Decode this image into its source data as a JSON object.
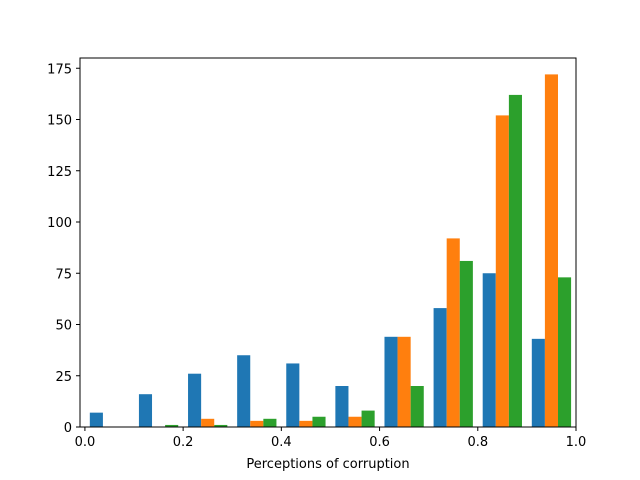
{
  "chart_data": {
    "type": "bar",
    "histogram": true,
    "title": "",
    "xlabel": "Perceptions of corruption",
    "ylabel": "",
    "xlim": [
      -0.01,
      1.0
    ],
    "ylim": [
      0,
      180
    ],
    "x_ticks": [
      0.0,
      0.2,
      0.4,
      0.6,
      0.8,
      1.0
    ],
    "x_tick_labels": [
      "0.0",
      "0.2",
      "0.4",
      "0.6",
      "0.8",
      "1.0"
    ],
    "y_ticks": [
      0,
      25,
      50,
      75,
      100,
      125,
      150,
      175
    ],
    "y_tick_labels": [
      "0",
      "25",
      "50",
      "75",
      "100",
      "125",
      "150",
      "175"
    ],
    "bin_edges": [
      0.0,
      0.1,
      0.2,
      0.3,
      0.4,
      0.5,
      0.6,
      0.7,
      0.8,
      0.9,
      1.0
    ],
    "grid": false,
    "legend": "none",
    "series": [
      {
        "color": "#1f77b4",
        "values": [
          7,
          16,
          26,
          35,
          31,
          20,
          44,
          58,
          75,
          43
        ]
      },
      {
        "color": "#ff7f0e",
        "values": [
          0,
          0,
          4,
          3,
          3,
          5,
          44,
          92,
          152,
          172
        ]
      },
      {
        "color": "#2ca02c",
        "values": [
          0,
          1,
          1,
          4,
          5,
          8,
          20,
          81,
          162,
          73
        ]
      }
    ]
  }
}
